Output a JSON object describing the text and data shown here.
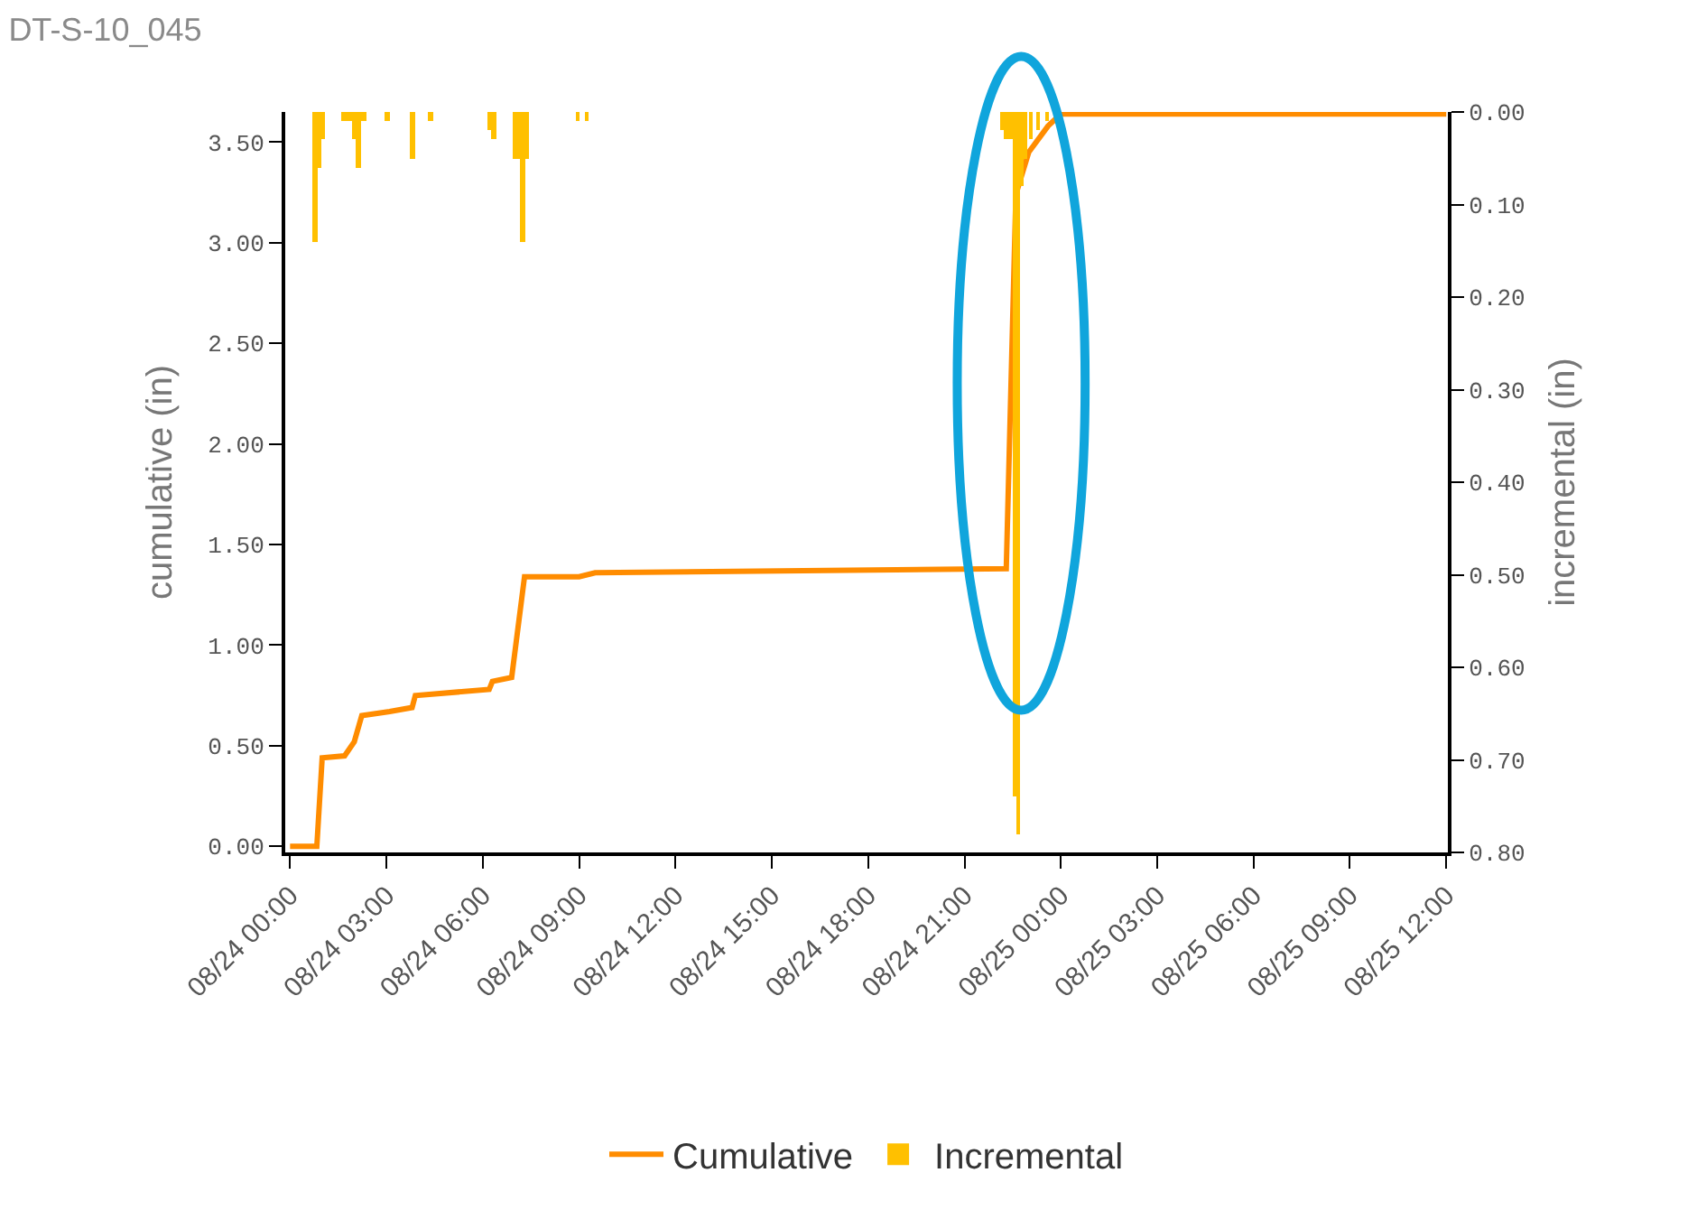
{
  "chart_data": {
    "type": "line",
    "title": "DT-S-10_045",
    "ylabel": "cumulative (in)",
    "y2label": "incremental (in)",
    "series": [
      {
        "name": "Cumulative",
        "color": "#ff8c00",
        "x": [
          "--08-24T00:00",
          "--08-24T00:50",
          "--08-24T01:00",
          "--08-24T01:42",
          "--08-24T02:00",
          "--08-24T02:14",
          "--08-24T03:06",
          "--08-24T03:48",
          "--08-24T03:54",
          "--08-24T06:12",
          "--08-24T06:18",
          "--08-24T06:54",
          "--08-24T07:18",
          "--08-24T09:00",
          "--08-24T09:30",
          "--08-24T22:18",
          "--08-24T22:36",
          "--08-24T23:00",
          "--08-24T23:36",
          "--08-25T00:00",
          "--08-25T12:00"
        ],
        "values": [
          0.0,
          0.0,
          0.44,
          0.45,
          0.52,
          0.65,
          0.67,
          0.69,
          0.75,
          0.78,
          0.82,
          0.84,
          1.34,
          1.34,
          1.36,
          1.38,
          3.24,
          3.45,
          3.58,
          3.64,
          3.64
        ]
      },
      {
        "name": "Incremental",
        "type": "bar",
        "axis": "y2",
        "color": "#ffc000",
        "x": [
          "--08-24T00:47",
          "--08-24T00:54",
          "--08-24T01:00",
          "--08-24T01:41",
          "--08-24T01:51",
          "--08-24T02:01",
          "--08-24T02:08",
          "--08-24T02:18",
          "--08-24T03:02",
          "--08-24T03:49",
          "--08-24T04:22",
          "--08-24T06:14",
          "--08-24T06:20",
          "--08-24T07:00",
          "--08-24T07:07",
          "--08-24T07:14",
          "--08-24T07:21",
          "--08-24T08:58",
          "--08-24T09:15",
          "--08-24T22:12",
          "--08-24T22:18",
          "--08-24T22:26",
          "--08-24T22:33",
          "--08-24T22:40",
          "--08-24T22:46",
          "--08-24T22:53",
          "--08-24T23:03",
          "--08-24T23:18",
          "--08-24T23:34"
        ],
        "values": [
          0.14,
          0.06,
          0.03,
          0.01,
          0.01,
          0.03,
          0.06,
          0.01,
          0.01,
          0.05,
          0.01,
          0.02,
          0.03,
          0.05,
          0.05,
          0.14,
          0.05,
          0.01,
          0.01,
          0.02,
          0.03,
          0.03,
          0.74,
          0.78,
          0.08,
          0.05,
          0.03,
          0.02,
          0.01
        ]
      }
    ],
    "xlim": [
      "--08-23T23:51",
      "--08-25T12:03"
    ],
    "xticks": [
      {
        "value": "--08-24T00:00",
        "label": "08/24 00:00"
      },
      {
        "value": "--08-24T03:00",
        "label": "08/24 03:00"
      },
      {
        "value": "--08-24T06:00",
        "label": "08/24 06:00"
      },
      {
        "value": "--08-24T09:00",
        "label": "08/24 09:00"
      },
      {
        "value": "--08-24T12:00",
        "label": "08/24 12:00"
      },
      {
        "value": "--08-24T15:00",
        "label": "08/24 15:00"
      },
      {
        "value": "--08-24T18:00",
        "label": "08/24 18:00"
      },
      {
        "value": "--08-24T21:00",
        "label": "08/24 21:00"
      },
      {
        "value": "--08-25T00:00",
        "label": "08/25 00:00"
      },
      {
        "value": "--08-25T03:00",
        "label": "08/25 03:00"
      },
      {
        "value": "--08-25T06:00",
        "label": "08/25 06:00"
      },
      {
        "value": "--08-25T09:00",
        "label": "08/25 09:00"
      },
      {
        "value": "--08-25T12:00",
        "label": "08/25 12:00"
      }
    ],
    "ylim": [
      -0.03,
      3.65
    ],
    "yticks": [
      {
        "value": 0,
        "label": "0.00"
      },
      {
        "value": 0.5,
        "label": "0.50"
      },
      {
        "value": 1,
        "label": "1.00"
      },
      {
        "value": 1.5,
        "label": "1.50"
      },
      {
        "value": 2,
        "label": "2.00"
      },
      {
        "value": 2.5,
        "label": "2.50"
      },
      {
        "value": 3,
        "label": "3.00"
      },
      {
        "value": 3.5,
        "label": "3.50"
      }
    ],
    "y2lim": [
      0.8,
      0.0
    ],
    "y2ticks": [
      {
        "value": 0,
        "label": "0.00"
      },
      {
        "value": 0.1,
        "label": "0.10"
      },
      {
        "value": 0.2,
        "label": "0.20"
      },
      {
        "value": 0.3,
        "label": "0.30"
      },
      {
        "value": 0.4,
        "label": "0.40"
      },
      {
        "value": 0.5,
        "label": "0.50"
      },
      {
        "value": 0.6,
        "label": "0.60"
      },
      {
        "value": 0.7,
        "label": "0.70"
      },
      {
        "value": 0.8,
        "label": "0.80"
      }
    ],
    "legend": "bottom",
    "marker": "none",
    "line_style": "solid"
  }
}
